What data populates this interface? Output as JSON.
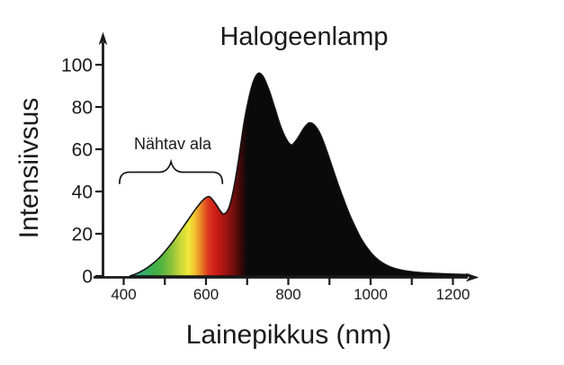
{
  "page": {
    "background": "#ffffff",
    "text_color": "#1a1a1a"
  },
  "chart_data": {
    "type": "area",
    "title": "Halogeenlamp",
    "xlabel": "Lainepikkus (nm)",
    "ylabel": "Intensiivsus",
    "x_unit": "nm",
    "xlim": [
      330,
      1260
    ],
    "ylim": [
      0,
      107
    ],
    "grid": false,
    "x_ticks_major": [
      400,
      600,
      800,
      1000,
      1200
    ],
    "x_ticks_minor": [
      500,
      700,
      900,
      1100
    ],
    "y_ticks": [
      0,
      20,
      40,
      60,
      80,
      100
    ],
    "annotation": {
      "text": "Nähtav ala",
      "range_nm": [
        390,
        640
      ]
    },
    "series": [
      {
        "name": "Halogeenlamp",
        "x": [
          415,
          432,
          450,
          468,
          486,
          504,
          522,
          540,
          558,
          576,
          592,
          604,
          612,
          624,
          636,
          644,
          656,
          668,
          680,
          692,
          704,
          716,
          728,
          740,
          754,
          768,
          782,
          796,
          808,
          822,
          838,
          851,
          864,
          878,
          892,
          906,
          920,
          934,
          948,
          962,
          976,
          990,
          1004,
          1020,
          1038,
          1058,
          1080,
          1105,
          1135,
          1170,
          1205,
          1238
        ],
        "y": [
          0,
          1.2,
          3,
          5.5,
          8.5,
          12.5,
          17,
          22,
          27,
          32,
          35.8,
          37.5,
          37,
          34,
          30.5,
          29.3,
          32.5,
          42,
          56,
          72,
          84,
          92.5,
          96,
          94,
          87.5,
          79,
          70.5,
          64.5,
          62,
          65,
          70,
          72.5,
          71.3,
          67,
          60,
          52,
          44,
          36.5,
          29.5,
          23.5,
          18,
          13.8,
          10.3,
          7.4,
          5.2,
          3.6,
          2.6,
          1.9,
          1.4,
          1.1,
          0.85,
          0.7
        ],
        "peaks": [
          {
            "nm": 605,
            "intensity": 37.5
          },
          {
            "nm": 728,
            "intensity": 96
          },
          {
            "nm": 851,
            "intensity": 72.5
          }
        ],
        "local_minima": [
          {
            "nm": 644,
            "intensity": 29.3
          },
          {
            "nm": 808,
            "intensity": 62
          }
        ]
      }
    ],
    "spectrum_gradient": [
      {
        "nm": 415,
        "color": "#2e9e96"
      },
      {
        "nm": 442,
        "color": "#35ad7d"
      },
      {
        "nm": 468,
        "color": "#3aae4e"
      },
      {
        "nm": 492,
        "color": "#52b340"
      },
      {
        "nm": 516,
        "color": "#8cc13c"
      },
      {
        "nm": 540,
        "color": "#cdd938"
      },
      {
        "nm": 558,
        "color": "#f0e83a"
      },
      {
        "nm": 574,
        "color": "#f1bd30"
      },
      {
        "nm": 590,
        "color": "#e87b24"
      },
      {
        "nm": 604,
        "color": "#dc3a1e"
      },
      {
        "nm": 622,
        "color": "#cf1d19"
      },
      {
        "nm": 645,
        "color": "#a51511"
      },
      {
        "nm": 666,
        "color": "#760f0c"
      },
      {
        "nm": 684,
        "color": "#3c0907"
      },
      {
        "nm": 700,
        "color": "#0a0a0a"
      }
    ],
    "infrared_fill": "#0a0a0a"
  }
}
